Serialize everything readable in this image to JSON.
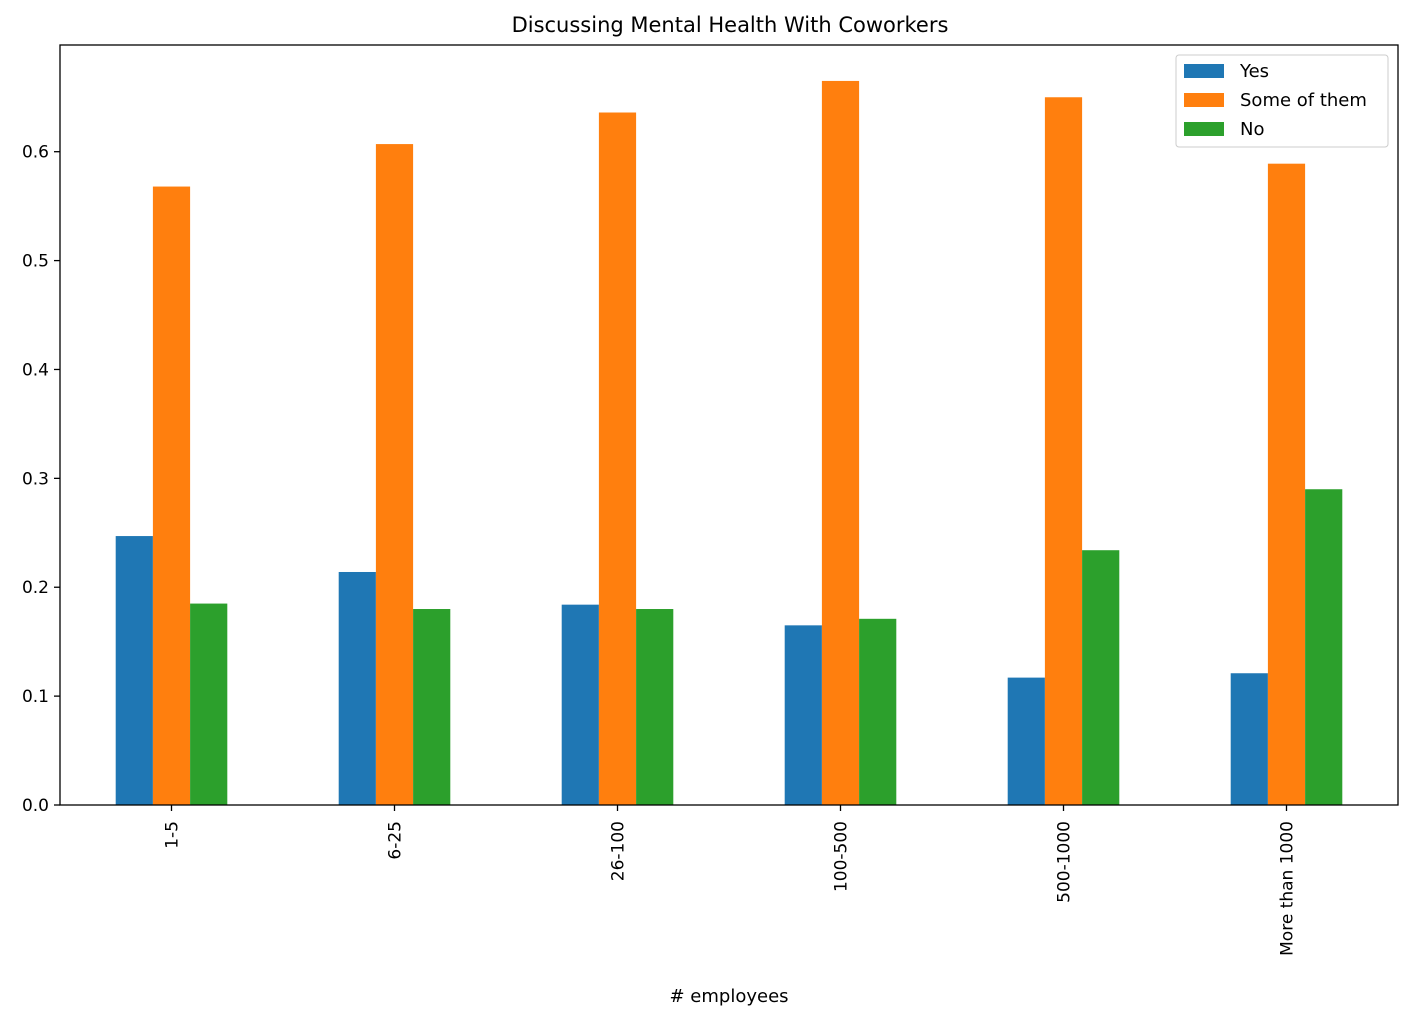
{
  "chart_data": {
    "type": "bar",
    "title": "Discussing Mental Health With Coworkers",
    "xlabel": "# employees",
    "ylabel": "",
    "categories": [
      "1-5",
      "6-25",
      "26-100",
      "100-500",
      "500-1000",
      "More than 1000"
    ],
    "series": [
      {
        "name": "Yes",
        "color": "#1f77b4",
        "values": [
          0.247,
          0.214,
          0.184,
          0.165,
          0.117,
          0.121
        ]
      },
      {
        "name": "Some of them",
        "color": "#ff7f0e",
        "values": [
          0.568,
          0.607,
          0.636,
          0.665,
          0.65,
          0.589
        ]
      },
      {
        "name": "No",
        "color": "#2ca02c",
        "values": [
          0.185,
          0.18,
          0.18,
          0.171,
          0.234,
          0.29
        ]
      }
    ],
    "yticks": [
      "0.0",
      "0.1",
      "0.2",
      "0.3",
      "0.4",
      "0.5",
      "0.6"
    ],
    "ylim": [
      0,
      0.698
    ],
    "legend_position": "top-right",
    "grid": false
  }
}
